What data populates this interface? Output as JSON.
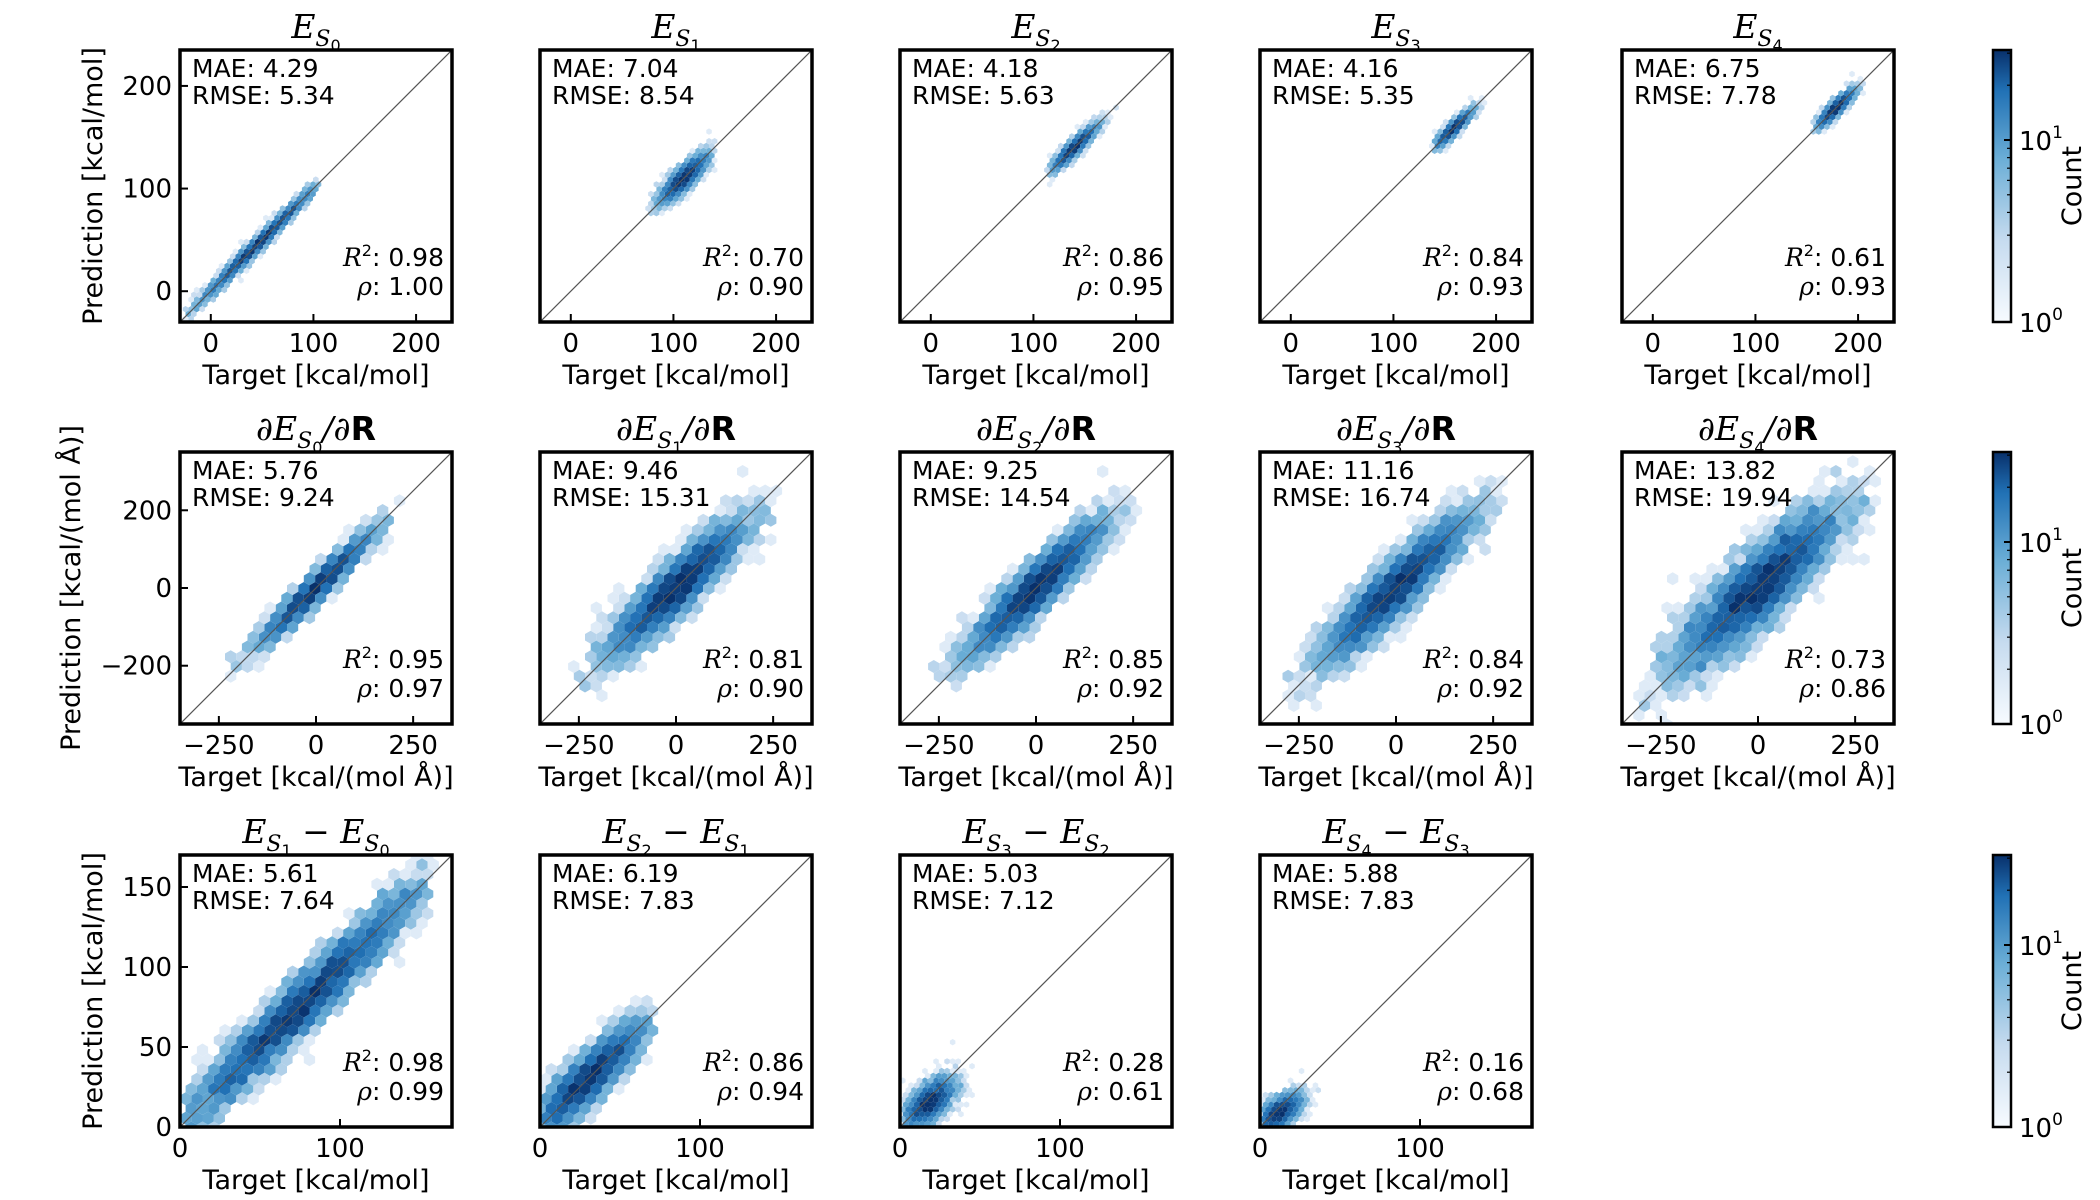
{
  "figure": {
    "colorbar_label": "Count",
    "colorbar_ticks": [
      {
        "base": "10",
        "exp": "1"
      },
      {
        "base": "10",
        "exp": "0"
      }
    ],
    "colors": {
      "hex_light": "#f4f9fe",
      "hex_dark": "#08306b",
      "diagonal": "#555555"
    }
  },
  "chart_data": [
    {
      "type": "hexbin",
      "row": 0,
      "col": 0,
      "title": {
        "base": "E",
        "sub": "S",
        "subsub": "0"
      },
      "xlabel": "Target [kcal/mol]",
      "ylabel": "Prediction [kcal/mol]",
      "xlim": [
        -30,
        235
      ],
      "ylim": [
        -30,
        235
      ],
      "xticks": [
        0,
        100,
        200
      ],
      "yticks": [
        0,
        100,
        200
      ],
      "stats": {
        "MAE": "4.29",
        "RMSE": "5.34",
        "R2": "0.98",
        "rho": "1.00"
      },
      "cloud": {
        "cx": 45,
        "cy": 45,
        "spread_x": 30,
        "spread_y": 30,
        "corr": 0.99,
        "min": -25,
        "max": 105
      }
    },
    {
      "type": "hexbin",
      "row": 0,
      "col": 1,
      "title": {
        "base": "E",
        "sub": "S",
        "subsub": "1"
      },
      "xlabel": "Target [kcal/mol]",
      "ylabel": "",
      "xlim": [
        -30,
        235
      ],
      "ylim": [
        -30,
        235
      ],
      "xticks": [
        0,
        100,
        200
      ],
      "yticks": [],
      "stats": {
        "MAE": "7.04",
        "RMSE": "8.54",
        "R2": "0.70",
        "rho": "0.90"
      },
      "cloud": {
        "cx": 110,
        "cy": 110,
        "spread_x": 12,
        "spread_y": 12,
        "corr": 0.85,
        "min": 75,
        "max": 140
      }
    },
    {
      "type": "hexbin",
      "row": 0,
      "col": 2,
      "title": {
        "base": "E",
        "sub": "S",
        "subsub": "2"
      },
      "xlabel": "Target [kcal/mol]",
      "ylabel": "",
      "xlim": [
        -30,
        235
      ],
      "ylim": [
        -30,
        235
      ],
      "xticks": [
        0,
        100,
        200
      ],
      "yticks": [],
      "stats": {
        "MAE": "4.18",
        "RMSE": "5.63",
        "R2": "0.86",
        "rho": "0.95"
      },
      "cloud": {
        "cx": 140,
        "cy": 140,
        "spread_x": 11,
        "spread_y": 11,
        "corr": 0.93,
        "min": 115,
        "max": 180
      }
    },
    {
      "type": "hexbin",
      "row": 0,
      "col": 3,
      "title": {
        "base": "E",
        "sub": "S",
        "subsub": "3"
      },
      "xlabel": "Target [kcal/mol]",
      "ylabel": "",
      "xlim": [
        -30,
        235
      ],
      "ylim": [
        -30,
        235
      ],
      "xticks": [
        0,
        100,
        200
      ],
      "yticks": [],
      "stats": {
        "MAE": "4.16",
        "RMSE": "5.35",
        "R2": "0.84",
        "rho": "0.93"
      },
      "cloud": {
        "cx": 158,
        "cy": 158,
        "spread_x": 9,
        "spread_y": 9,
        "corr": 0.92,
        "min": 140,
        "max": 195
      }
    },
    {
      "type": "hexbin",
      "row": 0,
      "col": 4,
      "title": {
        "base": "E",
        "sub": "S",
        "subsub": "4"
      },
      "xlabel": "Target [kcal/mol]",
      "ylabel": "",
      "xlim": [
        -30,
        235
      ],
      "ylim": [
        -30,
        235
      ],
      "xticks": [
        0,
        100,
        200
      ],
      "yticks": [],
      "stats": {
        "MAE": "6.75",
        "RMSE": "7.78",
        "R2": "0.61",
        "rho": "0.93"
      },
      "cloud": {
        "cx": 178,
        "cy": 178,
        "spread_x": 9,
        "spread_y": 9,
        "corr": 0.9,
        "min": 158,
        "max": 205
      }
    },
    {
      "type": "hexbin",
      "row": 1,
      "col": 0,
      "title": {
        "base": "∂E",
        "sub": "S",
        "subsub": "0",
        "tail": "/∂",
        "bold": "R"
      },
      "xlabel": "Target [kcal/(mol Å)]",
      "ylabel": "Prediction [kcal/(mol Å)]",
      "xlim": [
        -350,
        350
      ],
      "ylim": [
        -350,
        350
      ],
      "xticks": [
        -250,
        0,
        250
      ],
      "yticks": [
        -200,
        0,
        200
      ],
      "stats": {
        "MAE": "5.76",
        "RMSE": "9.24",
        "R2": "0.95",
        "rho": "0.97"
      },
      "cloud": {
        "cx": 0,
        "cy": 0,
        "spread_x": 70,
        "spread_y": 70,
        "corr": 0.97,
        "min": -220,
        "max": 220
      }
    },
    {
      "type": "hexbin",
      "row": 1,
      "col": 1,
      "title": {
        "base": "∂E",
        "sub": "S",
        "subsub": "1",
        "tail": "/∂",
        "bold": "R"
      },
      "xlabel": "Target [kcal/(mol Å)]",
      "ylabel": "",
      "xlim": [
        -350,
        350
      ],
      "ylim": [
        -350,
        350
      ],
      "xticks": [
        -250,
        0,
        250
      ],
      "yticks": [],
      "stats": {
        "MAE": "9.46",
        "RMSE": "15.31",
        "R2": "0.81",
        "rho": "0.90"
      },
      "cloud": {
        "cx": 0,
        "cy": 0,
        "spread_x": 85,
        "spread_y": 85,
        "corr": 0.9,
        "min": -260,
        "max": 260
      }
    },
    {
      "type": "hexbin",
      "row": 1,
      "col": 2,
      "title": {
        "base": "∂E",
        "sub": "S",
        "subsub": "2",
        "tail": "/∂",
        "bold": "R"
      },
      "xlabel": "Target [kcal/(mol Å)]",
      "ylabel": "",
      "xlim": [
        -350,
        350
      ],
      "ylim": [
        -350,
        350
      ],
      "xticks": [
        -250,
        0,
        250
      ],
      "yticks": [],
      "stats": {
        "MAE": "9.25",
        "RMSE": "14.54",
        "R2": "0.85",
        "rho": "0.92"
      },
      "cloud": {
        "cx": 0,
        "cy": 0,
        "spread_x": 85,
        "spread_y": 85,
        "corr": 0.92,
        "min": -260,
        "max": 260
      }
    },
    {
      "type": "hexbin",
      "row": 1,
      "col": 3,
      "title": {
        "base": "∂E",
        "sub": "S",
        "subsub": "3",
        "tail": "/∂",
        "bold": "R"
      },
      "xlabel": "Target [kcal/(mol Å)]",
      "ylabel": "",
      "xlim": [
        -350,
        350
      ],
      "ylim": [
        -350,
        350
      ],
      "xticks": [
        -250,
        0,
        250
      ],
      "yticks": [],
      "stats": {
        "MAE": "11.16",
        "RMSE": "16.74",
        "R2": "0.84",
        "rho": "0.92"
      },
      "cloud": {
        "cx": 0,
        "cy": 0,
        "spread_x": 95,
        "spread_y": 95,
        "corr": 0.92,
        "min": -290,
        "max": 290
      }
    },
    {
      "type": "hexbin",
      "row": 1,
      "col": 4,
      "title": {
        "base": "∂E",
        "sub": "S",
        "subsub": "4",
        "tail": "/∂",
        "bold": "R"
      },
      "xlabel": "Target [kcal/(mol Å)]",
      "ylabel": "",
      "xlim": [
        -350,
        350
      ],
      "ylim": [
        -350,
        350
      ],
      "xticks": [
        -250,
        0,
        250
      ],
      "yticks": [],
      "stats": {
        "MAE": "13.82",
        "RMSE": "19.94",
        "R2": "0.73",
        "rho": "0.86"
      },
      "cloud": {
        "cx": 0,
        "cy": 0,
        "spread_x": 105,
        "spread_y": 105,
        "corr": 0.86,
        "min": -300,
        "max": 300
      }
    },
    {
      "type": "hexbin",
      "row": 2,
      "col": 0,
      "title": {
        "base": "E",
        "sub": "S",
        "subsub": "1",
        "minus": " − E",
        "sub2": "S",
        "subsub2": "0"
      },
      "xlabel": "Target [kcal/mol]",
      "ylabel": "Prediction [kcal/mol]",
      "xlim": [
        0,
        170
      ],
      "ylim": [
        0,
        170
      ],
      "xticks": [
        0,
        100
      ],
      "yticks": [
        0,
        50,
        100,
        150
      ],
      "stats": {
        "MAE": "5.61",
        "RMSE": "7.64",
        "R2": "0.98",
        "rho": "0.99"
      },
      "cloud": {
        "cx": 75,
        "cy": 75,
        "spread_x": 40,
        "spread_y": 40,
        "corr": 0.97,
        "min": 3,
        "max": 155
      }
    },
    {
      "type": "hexbin",
      "row": 2,
      "col": 1,
      "title": {
        "base": "E",
        "sub": "S",
        "subsub": "2",
        "minus": " − E",
        "sub2": "S",
        "subsub2": "1"
      },
      "xlabel": "Target [kcal/mol]",
      "ylabel": "",
      "xlim": [
        0,
        170
      ],
      "ylim": [
        0,
        170
      ],
      "xticks": [
        0,
        100
      ],
      "yticks": [],
      "stats": {
        "MAE": "6.19",
        "RMSE": "7.83",
        "R2": "0.86",
        "rho": "0.94"
      },
      "cloud": {
        "cx": 30,
        "cy": 30,
        "spread_x": 18,
        "spread_y": 18,
        "corr": 0.9,
        "min": 1,
        "max": 70
      }
    },
    {
      "type": "hexbin",
      "row": 2,
      "col": 2,
      "title": {
        "base": "E",
        "sub": "S",
        "subsub": "3",
        "minus": " − E",
        "sub2": "S",
        "subsub2": "2"
      },
      "xlabel": "Target [kcal/mol]",
      "ylabel": "",
      "xlim": [
        0,
        170
      ],
      "ylim": [
        0,
        170
      ],
      "xticks": [
        0,
        100
      ],
      "yticks": [],
      "stats": {
        "MAE": "5.03",
        "RMSE": "7.12",
        "R2": "0.28",
        "rho": "0.61"
      },
      "cloud": {
        "cx": 18,
        "cy": 15,
        "spread_x": 8,
        "spread_y": 8,
        "corr": 0.6,
        "min": 2,
        "max": 45
      }
    },
    {
      "type": "hexbin",
      "row": 2,
      "col": 3,
      "title": {
        "base": "E",
        "sub": "S",
        "subsub": "4",
        "minus": " − E",
        "sub2": "S",
        "subsub2": "3"
      },
      "xlabel": "Target [kcal/mol]",
      "ylabel": "",
      "xlim": [
        0,
        170
      ],
      "ylim": [
        0,
        170
      ],
      "xticks": [
        0,
        100
      ],
      "yticks": [],
      "stats": {
        "MAE": "5.88",
        "RMSE": "7.83",
        "R2": "0.16",
        "rho": "0.68"
      },
      "cloud": {
        "cx": 12,
        "cy": 9,
        "spread_x": 7,
        "spread_y": 6,
        "corr": 0.6,
        "min": 1,
        "max": 40
      }
    }
  ]
}
